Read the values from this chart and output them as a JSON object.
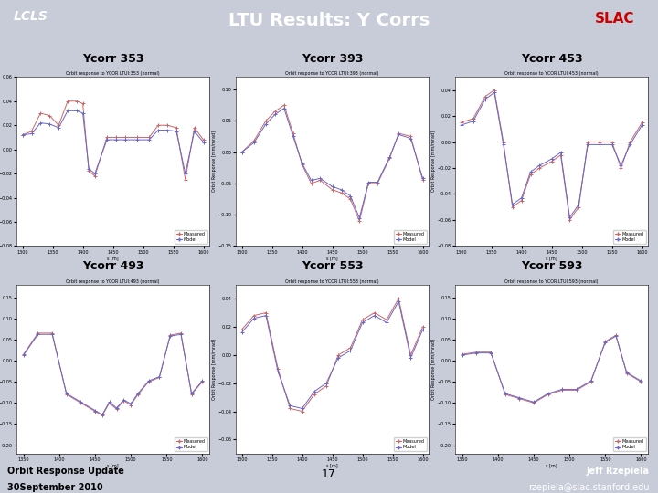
{
  "title": "LTU Results: Y Corrs",
  "header_bg": "#3a3aaa",
  "header_text_color": "#ffffff",
  "body_bg": "#c8ccd8",
  "footer_left_bg": "#b8bcd0",
  "footer_right_bg": "#4444aa",
  "footer_left": "Orbit Response Update\n30September 2010",
  "footer_center": "17",
  "footer_right": "Jeff Rzepiela\nrzepiela@slac.stanford.edu",
  "subplot_titles": [
    "Ycorr 353",
    "Ycorr 393",
    "Ycorr 453",
    "Ycorr 493",
    "Ycorr 553",
    "Ycorr 593"
  ],
  "subplot_internal_titles": [
    "Orbit response to YCOR LTUI:353 (normal)",
    "Orbit response to YCOR LTUI:393 (normal)",
    "Orbit response to YCOR LTUI:453 (normal)",
    "Orbit response to YCOR LTUI:493 (normal)",
    "Orbit response to YCOR LTUI:553 (normal)",
    "Orbit response to YCOR LTUI:593 (normal)"
  ],
  "xlabel": "s [m]",
  "ylabel": "Orbit Response [mm/mrad]",
  "line_color_measured": "#cc6666",
  "line_color_model": "#6666cc",
  "plots": [
    {
      "xlim": [
        1290,
        1610
      ],
      "xticks": [
        1300,
        1350,
        1400,
        1450,
        1500,
        1550,
        1600
      ],
      "ylim": [
        -0.08,
        0.06
      ],
      "x": [
        1300,
        1315,
        1330,
        1345,
        1360,
        1375,
        1390,
        1400,
        1410,
        1420,
        1440,
        1455,
        1470,
        1490,
        1510,
        1525,
        1540,
        1555,
        1570,
        1585,
        1600
      ],
      "measured": [
        0.012,
        0.015,
        0.03,
        0.028,
        0.02,
        0.04,
        0.04,
        0.038,
        -0.018,
        -0.022,
        0.01,
        0.01,
        0.01,
        0.01,
        0.01,
        0.02,
        0.02,
        0.018,
        -0.025,
        0.018,
        0.008
      ],
      "model": [
        0.012,
        0.013,
        0.022,
        0.021,
        0.018,
        0.032,
        0.032,
        0.03,
        -0.016,
        -0.02,
        0.008,
        0.008,
        0.008,
        0.008,
        0.008,
        0.016,
        0.016,
        0.015,
        -0.02,
        0.015,
        0.006
      ]
    },
    {
      "xlim": [
        1290,
        1610
      ],
      "xticks": [
        1300,
        1350,
        1400,
        1450,
        1500,
        1550,
        1600
      ],
      "ylim": [
        -0.15,
        0.12
      ],
      "x": [
        1300,
        1320,
        1340,
        1355,
        1370,
        1385,
        1400,
        1415,
        1430,
        1450,
        1465,
        1480,
        1495,
        1510,
        1525,
        1545,
        1560,
        1580,
        1600
      ],
      "measured": [
        0.0,
        0.018,
        0.05,
        0.065,
        0.075,
        0.03,
        -0.02,
        -0.05,
        -0.045,
        -0.06,
        -0.065,
        -0.075,
        -0.11,
        -0.05,
        -0.05,
        -0.01,
        0.03,
        0.025,
        -0.045
      ],
      "model": [
        0.0,
        0.015,
        0.045,
        0.06,
        0.07,
        0.025,
        -0.018,
        -0.045,
        -0.042,
        -0.055,
        -0.06,
        -0.07,
        -0.105,
        -0.048,
        -0.048,
        -0.008,
        0.028,
        0.022,
        -0.042
      ]
    },
    {
      "xlim": [
        1290,
        1610
      ],
      "xticks": [
        1300,
        1350,
        1400,
        1450,
        1500,
        1550,
        1600
      ],
      "ylim": [
        -0.08,
        0.05
      ],
      "x": [
        1300,
        1320,
        1340,
        1355,
        1370,
        1385,
        1400,
        1415,
        1430,
        1450,
        1465,
        1480,
        1495,
        1510,
        1530,
        1550,
        1565,
        1580,
        1600
      ],
      "measured": [
        0.015,
        0.018,
        0.035,
        0.04,
        0.0,
        -0.05,
        -0.045,
        -0.025,
        -0.02,
        -0.015,
        -0.01,
        -0.06,
        -0.05,
        0.0,
        0.0,
        0.0,
        -0.02,
        0.0,
        0.015
      ],
      "model": [
        0.013,
        0.016,
        0.033,
        0.038,
        -0.002,
        -0.048,
        -0.043,
        -0.023,
        -0.018,
        -0.013,
        -0.008,
        -0.058,
        -0.048,
        -0.002,
        -0.002,
        -0.002,
        -0.018,
        -0.002,
        0.013
      ]
    },
    {
      "xlim": [
        1340,
        1610
      ],
      "xticks": [
        1350,
        1400,
        1450,
        1500,
        1550,
        1600
      ],
      "ylim": [
        -0.22,
        0.18
      ],
      "x": [
        1350,
        1370,
        1390,
        1410,
        1430,
        1450,
        1460,
        1470,
        1480,
        1490,
        1500,
        1510,
        1525,
        1540,
        1555,
        1570,
        1585,
        1600
      ],
      "measured": [
        0.015,
        0.065,
        0.065,
        -0.08,
        -0.1,
        -0.12,
        -0.13,
        -0.1,
        -0.115,
        -0.095,
        -0.105,
        -0.08,
        -0.05,
        -0.04,
        0.06,
        0.065,
        -0.08,
        -0.05
      ],
      "model": [
        0.013,
        0.062,
        0.062,
        -0.078,
        -0.098,
        -0.118,
        -0.128,
        -0.098,
        -0.112,
        -0.093,
        -0.102,
        -0.078,
        -0.048,
        -0.038,
        0.058,
        0.062,
        -0.078,
        -0.048
      ]
    },
    {
      "xlim": [
        1290,
        1610
      ],
      "xticks": [
        1300,
        1350,
        1400,
        1450,
        1500,
        1550,
        1600
      ],
      "ylim": [
        -0.07,
        0.05
      ],
      "x": [
        1300,
        1320,
        1340,
        1360,
        1380,
        1400,
        1420,
        1440,
        1460,
        1480,
        1500,
        1520,
        1540,
        1560,
        1580,
        1600
      ],
      "measured": [
        0.018,
        0.028,
        0.03,
        -0.01,
        -0.038,
        -0.04,
        -0.028,
        -0.022,
        0.0,
        0.005,
        0.025,
        0.03,
        0.025,
        0.04,
        0.0,
        0.02
      ],
      "model": [
        0.016,
        0.026,
        0.028,
        -0.012,
        -0.036,
        -0.038,
        -0.026,
        -0.02,
        -0.002,
        0.003,
        0.023,
        0.028,
        0.023,
        0.038,
        -0.002,
        0.018
      ]
    },
    {
      "xlim": [
        1340,
        1610
      ],
      "xticks": [
        1350,
        1400,
        1450,
        1500,
        1550,
        1600
      ],
      "ylim": [
        -0.22,
        0.18
      ],
      "x": [
        1350,
        1370,
        1390,
        1410,
        1430,
        1450,
        1470,
        1490,
        1510,
        1530,
        1550,
        1565,
        1580,
        1600
      ],
      "measured": [
        0.015,
        0.02,
        0.02,
        -0.08,
        -0.09,
        -0.1,
        -0.08,
        -0.07,
        -0.07,
        -0.05,
        0.045,
        0.06,
        -0.03,
        -0.05
      ],
      "model": [
        0.013,
        0.018,
        0.018,
        -0.078,
        -0.088,
        -0.098,
        -0.078,
        -0.068,
        -0.068,
        -0.048,
        0.043,
        0.058,
        -0.028,
        -0.048
      ]
    }
  ]
}
